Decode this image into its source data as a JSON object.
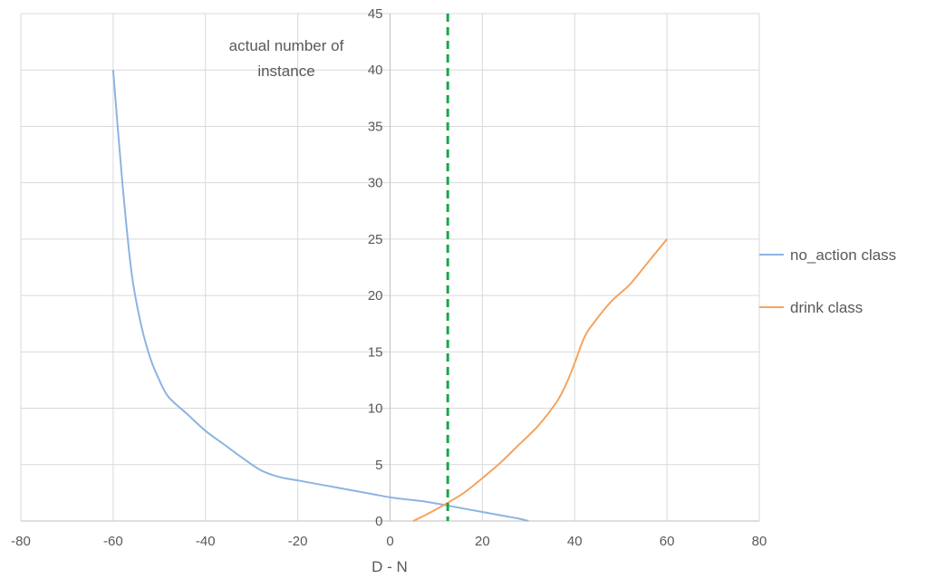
{
  "chart_data": {
    "type": "line",
    "xlabel": "D - N",
    "ylabel_lines": [
      "actual number of",
      "instance"
    ],
    "xlim": [
      -80,
      80
    ],
    "ylim": [
      0,
      45
    ],
    "x_ticks": [
      "-80",
      "-60",
      "-40",
      "-20",
      "0",
      "20",
      "40",
      "60",
      "80"
    ],
    "y_ticks": [
      "0",
      "5",
      "10",
      "15",
      "20",
      "25",
      "30",
      "35",
      "40",
      "45"
    ],
    "grid": true,
    "legend_position": "right",
    "threshold_line": {
      "x": 12.5,
      "color": "#1aa64b",
      "style": "dashed"
    },
    "series": [
      {
        "name": "no_action class",
        "color": "#8db4e2",
        "points": [
          [
            -60,
            40
          ],
          [
            -58,
            30
          ],
          [
            -56,
            22
          ],
          [
            -54,
            17.5
          ],
          [
            -52,
            14.5
          ],
          [
            -50,
            12.5
          ],
          [
            -48,
            11
          ],
          [
            -44,
            9.5
          ],
          [
            -40,
            8
          ],
          [
            -36,
            6.8
          ],
          [
            -32,
            5.6
          ],
          [
            -28,
            4.5
          ],
          [
            -24,
            3.9
          ],
          [
            -20,
            3.6
          ],
          [
            -16,
            3.3
          ],
          [
            -12,
            3.0
          ],
          [
            -8,
            2.7
          ],
          [
            -4,
            2.4
          ],
          [
            0,
            2.1
          ],
          [
            4,
            1.9
          ],
          [
            8,
            1.7
          ],
          [
            12,
            1.4
          ],
          [
            16,
            1.1
          ],
          [
            20,
            0.8
          ],
          [
            24,
            0.5
          ],
          [
            28,
            0.2
          ],
          [
            30,
            0
          ]
        ]
      },
      {
        "name": "drink class",
        "color": "#f4a460",
        "points": [
          [
            5,
            0
          ],
          [
            8,
            0.6
          ],
          [
            12,
            1.5
          ],
          [
            16,
            2.5
          ],
          [
            20,
            3.8
          ],
          [
            24,
            5.2
          ],
          [
            28,
            6.8
          ],
          [
            32,
            8.4
          ],
          [
            36,
            10.5
          ],
          [
            38,
            12
          ],
          [
            40,
            14
          ],
          [
            42,
            16.2
          ],
          [
            44,
            17.5
          ],
          [
            48,
            19.5
          ],
          [
            52,
            21
          ],
          [
            56,
            23
          ],
          [
            60,
            25
          ]
        ]
      }
    ]
  }
}
